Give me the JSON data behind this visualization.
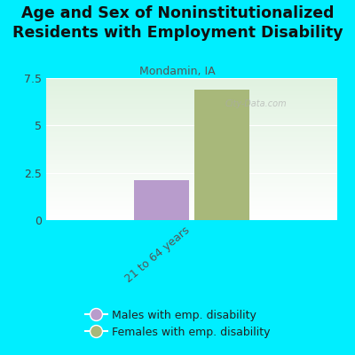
{
  "title": "Age and Sex of Noninstitutionalized\nResidents with Employment Disability",
  "subtitle": "Mondamin, IA",
  "categories": [
    "21 to 64 years"
  ],
  "male_values": [
    2.1
  ],
  "female_values": [
    6.9
  ],
  "male_color": "#b89ccc",
  "female_color": "#a8b87a",
  "background_color": "#00eeff",
  "ylim": [
    0,
    7.5
  ],
  "yticks": [
    0,
    2.5,
    5,
    7.5
  ],
  "bar_width": 0.38,
  "title_fontsize": 12.5,
  "subtitle_fontsize": 9,
  "legend_label_male": "Males with emp. disability",
  "legend_label_female": "Females with emp. disability",
  "watermark": "City-Data.com"
}
